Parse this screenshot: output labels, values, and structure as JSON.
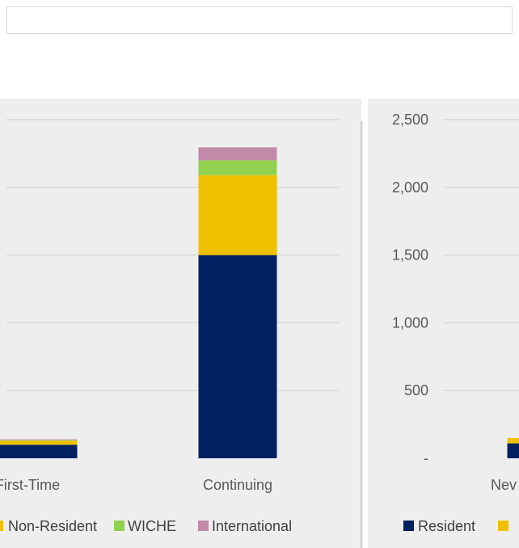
{
  "header": {
    "title": "",
    "subtitle": ""
  },
  "chart_data": [
    {
      "type": "bar",
      "stacked": true,
      "categories": [
        "New First-Time",
        "Continuing"
      ],
      "category_labels_visible": [
        "v First-Time",
        "Continuing"
      ],
      "series": [
        {
          "name": "Resident",
          "color": "#002060",
          "values": [
            100,
            1500
          ]
        },
        {
          "name": "Non-Resident",
          "color": "#f0c000",
          "values": [
            30,
            590
          ]
        },
        {
          "name": "WICHE",
          "color": "#92d050",
          "values": [
            5,
            110
          ]
        },
        {
          "name": "International",
          "color": "#c08aa8",
          "values": [
            5,
            95
          ]
        }
      ],
      "ylim": [
        0,
        2500
      ],
      "grid": true,
      "legend": "bottom",
      "legend_labels_visible": [
        "Non-Resident",
        "WICHE",
        "International"
      ]
    },
    {
      "type": "bar",
      "stacked": true,
      "categories": [
        "New"
      ],
      "category_labels_visible": [
        "Nev"
      ],
      "series": [
        {
          "name": "Resident",
          "color": "#002060",
          "values": [
            110
          ]
        },
        {
          "name": "Non-Resident",
          "color": "#f0c000",
          "values": [
            40
          ]
        }
      ],
      "yticks": [
        "-",
        "500",
        "1,000",
        "1,500",
        "2,000",
        "2,500"
      ],
      "ylim": [
        0,
        2500
      ],
      "grid": true,
      "legend": "bottom",
      "legend_labels_visible": [
        "Resident"
      ]
    }
  ]
}
